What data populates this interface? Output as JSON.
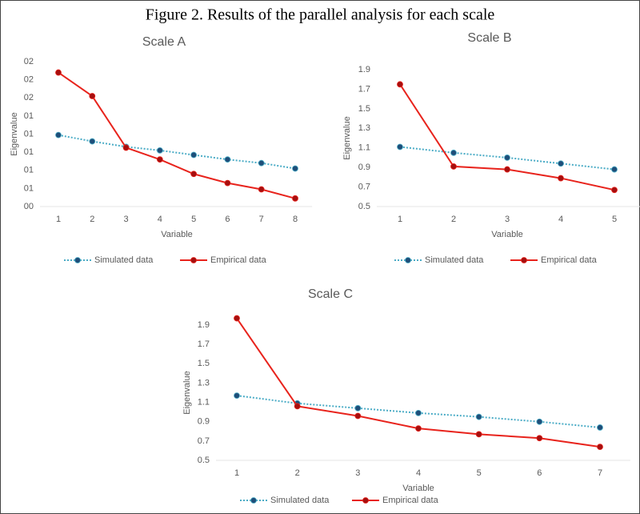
{
  "figure_title": "Figure 2. Results of the parallel analysis for each scale",
  "chart_data": [
    {
      "type": "line",
      "title": "Scale A",
      "x_label": "Variable",
      "y_label": "Eigenvalue",
      "categories": [
        "1",
        "2",
        "3",
        "4",
        "5",
        "6",
        "7",
        "8"
      ],
      "ylim": [
        0.3,
        1.9
      ],
      "yticks": [
        {
          "value": 0.3,
          "label": "00"
        },
        {
          "value": 0.5,
          "label": "01"
        },
        {
          "value": 0.7,
          "label": "01"
        },
        {
          "value": 0.9,
          "label": "01"
        },
        {
          "value": 1.1,
          "label": "01"
        },
        {
          "value": 1.3,
          "label": "01"
        },
        {
          "value": 1.5,
          "label": "02"
        },
        {
          "value": 1.7,
          "label": "02"
        },
        {
          "value": 1.9,
          "label": "02"
        }
      ],
      "series": [
        {
          "name": "Simulated data",
          "color": "#4bacc6",
          "marker_color": "#1f4e79",
          "dash": "dotted",
          "values": [
            1.09,
            1.02,
            0.96,
            0.92,
            0.87,
            0.82,
            0.78,
            0.72
          ]
        },
        {
          "name": "Empirical data",
          "color": "#e8231c",
          "marker_color": "#a50f0f",
          "dash": "solid",
          "values": [
            1.78,
            1.52,
            0.95,
            0.82,
            0.66,
            0.56,
            0.49,
            0.39
          ]
        }
      ]
    },
    {
      "type": "line",
      "title": "Scale B",
      "x_label": "Variable",
      "y_label": "Eigenvalue",
      "categories": [
        "1",
        "2",
        "3",
        "4",
        "5"
      ],
      "ylim": [
        0.5,
        1.9
      ],
      "yticks": [
        0.5,
        0.7,
        0.9,
        1.1,
        1.3,
        1.5,
        1.7,
        1.9
      ],
      "series": [
        {
          "name": "Simulated data",
          "color": "#4bacc6",
          "marker_color": "#1f4e79",
          "dash": "dotted",
          "values": [
            1.11,
            1.05,
            1.0,
            0.94,
            0.88
          ]
        },
        {
          "name": "Empirical data",
          "color": "#e8231c",
          "marker_color": "#a50f0f",
          "dash": "solid",
          "values": [
            1.75,
            0.91,
            0.88,
            0.79,
            0.67
          ]
        }
      ]
    },
    {
      "type": "line",
      "title": "Scale C",
      "x_label": "Variable",
      "y_label": "Eigenvalue",
      "categories": [
        "1",
        "2",
        "3",
        "4",
        "5",
        "6",
        "7"
      ],
      "ylim": [
        0.5,
        1.9
      ],
      "yticks": [
        0.5,
        0.7,
        0.9,
        1.1,
        1.3,
        1.5,
        1.7,
        1.9
      ],
      "series": [
        {
          "name": "Simulated data",
          "color": "#4bacc6",
          "marker_color": "#1f4e79",
          "dash": "dotted",
          "values": [
            1.17,
            1.09,
            1.04,
            0.99,
            0.95,
            0.9,
            0.84
          ]
        },
        {
          "name": "Empirical data",
          "color": "#e8231c",
          "marker_color": "#a50f0f",
          "dash": "solid",
          "values": [
            1.97,
            1.06,
            0.96,
            0.83,
            0.77,
            0.73,
            0.64
          ]
        }
      ]
    }
  ]
}
